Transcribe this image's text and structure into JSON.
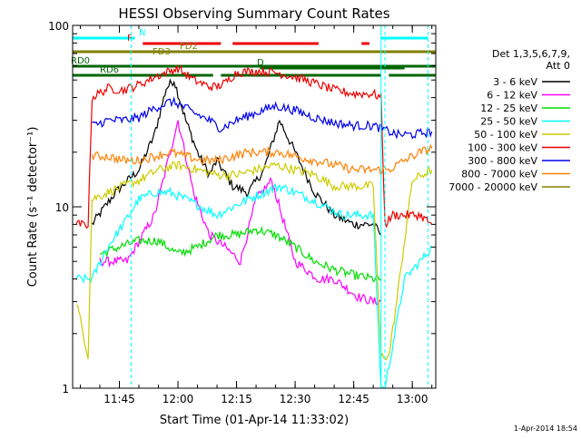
{
  "chart_data": {
    "type": "line",
    "title": "HESSI Observing Summary Count Rates",
    "xlabel": "Start Time (01-Apr-14 11:33:02)",
    "ylabel": "Count Rate (s⁻¹ detector⁻¹)",
    "y_scale": "log",
    "ylim": [
      1,
      100
    ],
    "xlim": [
      "11:33:02",
      "13:06:00"
    ],
    "x_ticks": [
      "11:45",
      "12:00",
      "12:15",
      "12:30",
      "12:45",
      "13:00"
    ],
    "y_tick_labels": [
      "1",
      "10",
      "100"
    ],
    "date_stamp": "1-Apr-2014 18:54",
    "legend": {
      "placement": "right",
      "header_lines": [
        "Det 1,3,5,6,7,9,",
        "Att 0"
      ],
      "entries": [
        {
          "label": "3 - 6 keV",
          "color": "#000000"
        },
        {
          "label": "6 - 12 keV",
          "color": "#ff00ff"
        },
        {
          "label": "12 - 25 keV",
          "color": "#00dd00"
        },
        {
          "label": "25 - 50 keV",
          "color": "#00ffff"
        },
        {
          "label": "50 - 100 keV",
          "color": "#cccc00"
        },
        {
          "label": "100 - 300 keV",
          "color": "#ee0000"
        },
        {
          "label": "300 - 800 keV",
          "color": "#0000ee"
        },
        {
          "label": "800 - 7000 keV",
          "color": "#ff8000"
        },
        {
          "label": "7000 - 20000 keV",
          "color": "#808000"
        }
      ]
    },
    "flag_bars": [
      {
        "label": "N",
        "color": "#00ffff",
        "segments": [
          [
            "11:33",
            "11:49"
          ],
          [
            "12:52",
            "13:04"
          ]
        ]
      },
      {
        "label": "F",
        "color": "#ee0000",
        "segments": [
          [
            "11:51",
            "12:11"
          ],
          [
            "12:14",
            "12:36"
          ],
          [
            "12:47",
            "12:49"
          ]
        ]
      },
      {
        "label": "FD2",
        "color": "#808000",
        "segments": [
          [
            "11:33",
            "13:06"
          ]
        ]
      },
      {
        "label": "FD3",
        "color": "#808000",
        "segments": []
      },
      {
        "label": "RD0",
        "color": "#006600",
        "segments": [
          [
            "11:33",
            "13:06"
          ]
        ]
      },
      {
        "label": "D",
        "color": "#006600",
        "segments": [
          [
            "12:21",
            "12:58"
          ]
        ]
      },
      {
        "label": "RD6",
        "color": "#006600",
        "segments": [
          [
            "11:33",
            "12:09"
          ],
          [
            "12:11",
            "12:52"
          ],
          [
            "12:54",
            "13:06"
          ]
        ]
      }
    ],
    "vertical_markers": [
      {
        "time": "11:48",
        "style": "dashed",
        "color": "#00ffff"
      },
      {
        "time": "12:52",
        "style": "solid",
        "color": "#00ffff"
      },
      {
        "time": "12:53",
        "style": "dashed",
        "color": "#00ffff"
      },
      {
        "time": "13:04",
        "style": "dashed",
        "color": "#00ffff"
      }
    ],
    "series": [
      {
        "name": "3 - 6 keV",
        "color": "#000000",
        "x": [
          "11:38",
          "11:44",
          "11:50",
          "11:54",
          "11:57",
          "11:59",
          "12:02",
          "12:05",
          "12:08",
          "12:10",
          "12:14",
          "12:18",
          "12:22",
          "12:26",
          "12:30",
          "12:35",
          "12:40",
          "12:45",
          "12:50",
          "12:52"
        ],
        "y": [
          8,
          12,
          16,
          25,
          45,
          50,
          30,
          20,
          15,
          18,
          13,
          12,
          16,
          30,
          20,
          12,
          9,
          8,
          8,
          7
        ]
      },
      {
        "name": "6 - 12 keV",
        "color": "#ff00ff",
        "x": [
          "11:40",
          "11:47",
          "11:54",
          "11:58",
          "12:00",
          "12:04",
          "12:08",
          "12:12",
          "12:16",
          "12:20",
          "12:24",
          "12:30",
          "12:36",
          "12:40",
          "12:46",
          "12:50",
          "12:52"
        ],
        "y": [
          5,
          5,
          9,
          20,
          30,
          12,
          7,
          6,
          5,
          11,
          14,
          5,
          4,
          4,
          3.2,
          3,
          3
        ]
      },
      {
        "name": "12 - 25 keV",
        "color": "#00dd00",
        "x": [
          "11:40",
          "11:45",
          "11:50",
          "11:55",
          "12:00",
          "12:05",
          "12:10",
          "12:15",
          "12:20",
          "12:25",
          "12:30",
          "12:35",
          "12:40",
          "12:45",
          "12:50",
          "12:52"
        ],
        "y": [
          5.5,
          6,
          6.5,
          6.5,
          5.5,
          6,
          7,
          7,
          7.5,
          7,
          6,
          5,
          4.5,
          4.2,
          4,
          4
        ]
      },
      {
        "name": "25 - 50 keV",
        "color": "#00ffff",
        "x": [
          "11:34",
          "11:38",
          "11:42",
          "11:46",
          "11:50",
          "11:54",
          "11:58",
          "12:02",
          "12:06",
          "12:10",
          "12:14",
          "12:18",
          "12:22",
          "12:26",
          "12:30",
          "12:34",
          "12:38",
          "12:42",
          "12:46",
          "12:50",
          "12:52",
          "12:53",
          "12:58",
          "13:02",
          "13:05"
        ],
        "y": [
          4,
          4,
          6,
          8,
          11,
          12,
          12,
          11,
          10,
          9,
          10,
          11,
          12,
          13,
          12,
          11,
          10,
          9,
          9,
          9,
          1,
          1,
          4,
          5,
          6
        ]
      },
      {
        "name": "50 - 100 keV",
        "color": "#cccc00",
        "x": [
          "11:34",
          "11:37",
          "11:38",
          "11:42",
          "11:46",
          "11:50",
          "11:55",
          "12:00",
          "12:05",
          "12:10",
          "12:15",
          "12:20",
          "12:25",
          "12:30",
          "12:35",
          "12:40",
          "12:45",
          "12:50",
          "12:52",
          "12:54",
          "12:56",
          "13:00",
          "13:05"
        ],
        "y": [
          3,
          1.5,
          11,
          12,
          13,
          14,
          16,
          17,
          16,
          15,
          15,
          16,
          17,
          16,
          15,
          13,
          13,
          13,
          1.5,
          1.5,
          3,
          14,
          16
        ]
      },
      {
        "name": "100 - 300 keV",
        "color": "#ee0000",
        "x": [
          "11:34",
          "11:37",
          "11:38",
          "11:42",
          "11:46",
          "11:50",
          "11:54",
          "11:58",
          "12:00",
          "12:04",
          "12:08",
          "12:10",
          "12:12",
          "12:15",
          "12:20",
          "12:25",
          "12:30",
          "12:35",
          "12:40",
          "12:45",
          "12:50",
          "12:52",
          "12:53",
          "12:55",
          "12:58",
          "13:02",
          "13:05"
        ],
        "y": [
          8,
          8,
          40,
          45,
          44,
          47,
          52,
          56,
          58,
          50,
          46,
          46,
          48,
          55,
          56,
          55,
          52,
          48,
          44,
          42,
          42,
          40,
          8,
          9,
          9,
          9,
          8
        ]
      },
      {
        "name": "300 - 800 keV",
        "color": "#0000ee",
        "x": [
          "11:38",
          "11:42",
          "11:46",
          "11:50",
          "11:54",
          "11:58",
          "12:00",
          "12:04",
          "12:08",
          "12:11",
          "12:15",
          "12:20",
          "12:25",
          "12:30",
          "12:35",
          "12:40",
          "12:45",
          "12:50",
          "12:52",
          "12:56",
          "13:00",
          "13:05"
        ],
        "y": [
          28,
          30,
          30,
          31,
          35,
          38,
          37,
          33,
          30,
          27,
          30,
          33,
          36,
          34,
          31,
          29,
          28,
          28,
          27,
          25,
          25,
          26
        ]
      },
      {
        "name": "800 - 7000 keV",
        "color": "#ff8000",
        "x": [
          "11:38",
          "11:42",
          "11:46",
          "11:50",
          "11:54",
          "11:58",
          "12:02",
          "12:06",
          "12:10",
          "12:14",
          "12:18",
          "12:22",
          "12:26",
          "12:30",
          "12:35",
          "12:40",
          "12:45",
          "12:50",
          "12:54",
          "12:58",
          "13:02",
          "13:05"
        ],
        "y": [
          19,
          19,
          18,
          18,
          19,
          20,
          19,
          18,
          18,
          19,
          20,
          20,
          20,
          19,
          18,
          17,
          16,
          16,
          16,
          18,
          20,
          21
        ]
      }
    ]
  }
}
